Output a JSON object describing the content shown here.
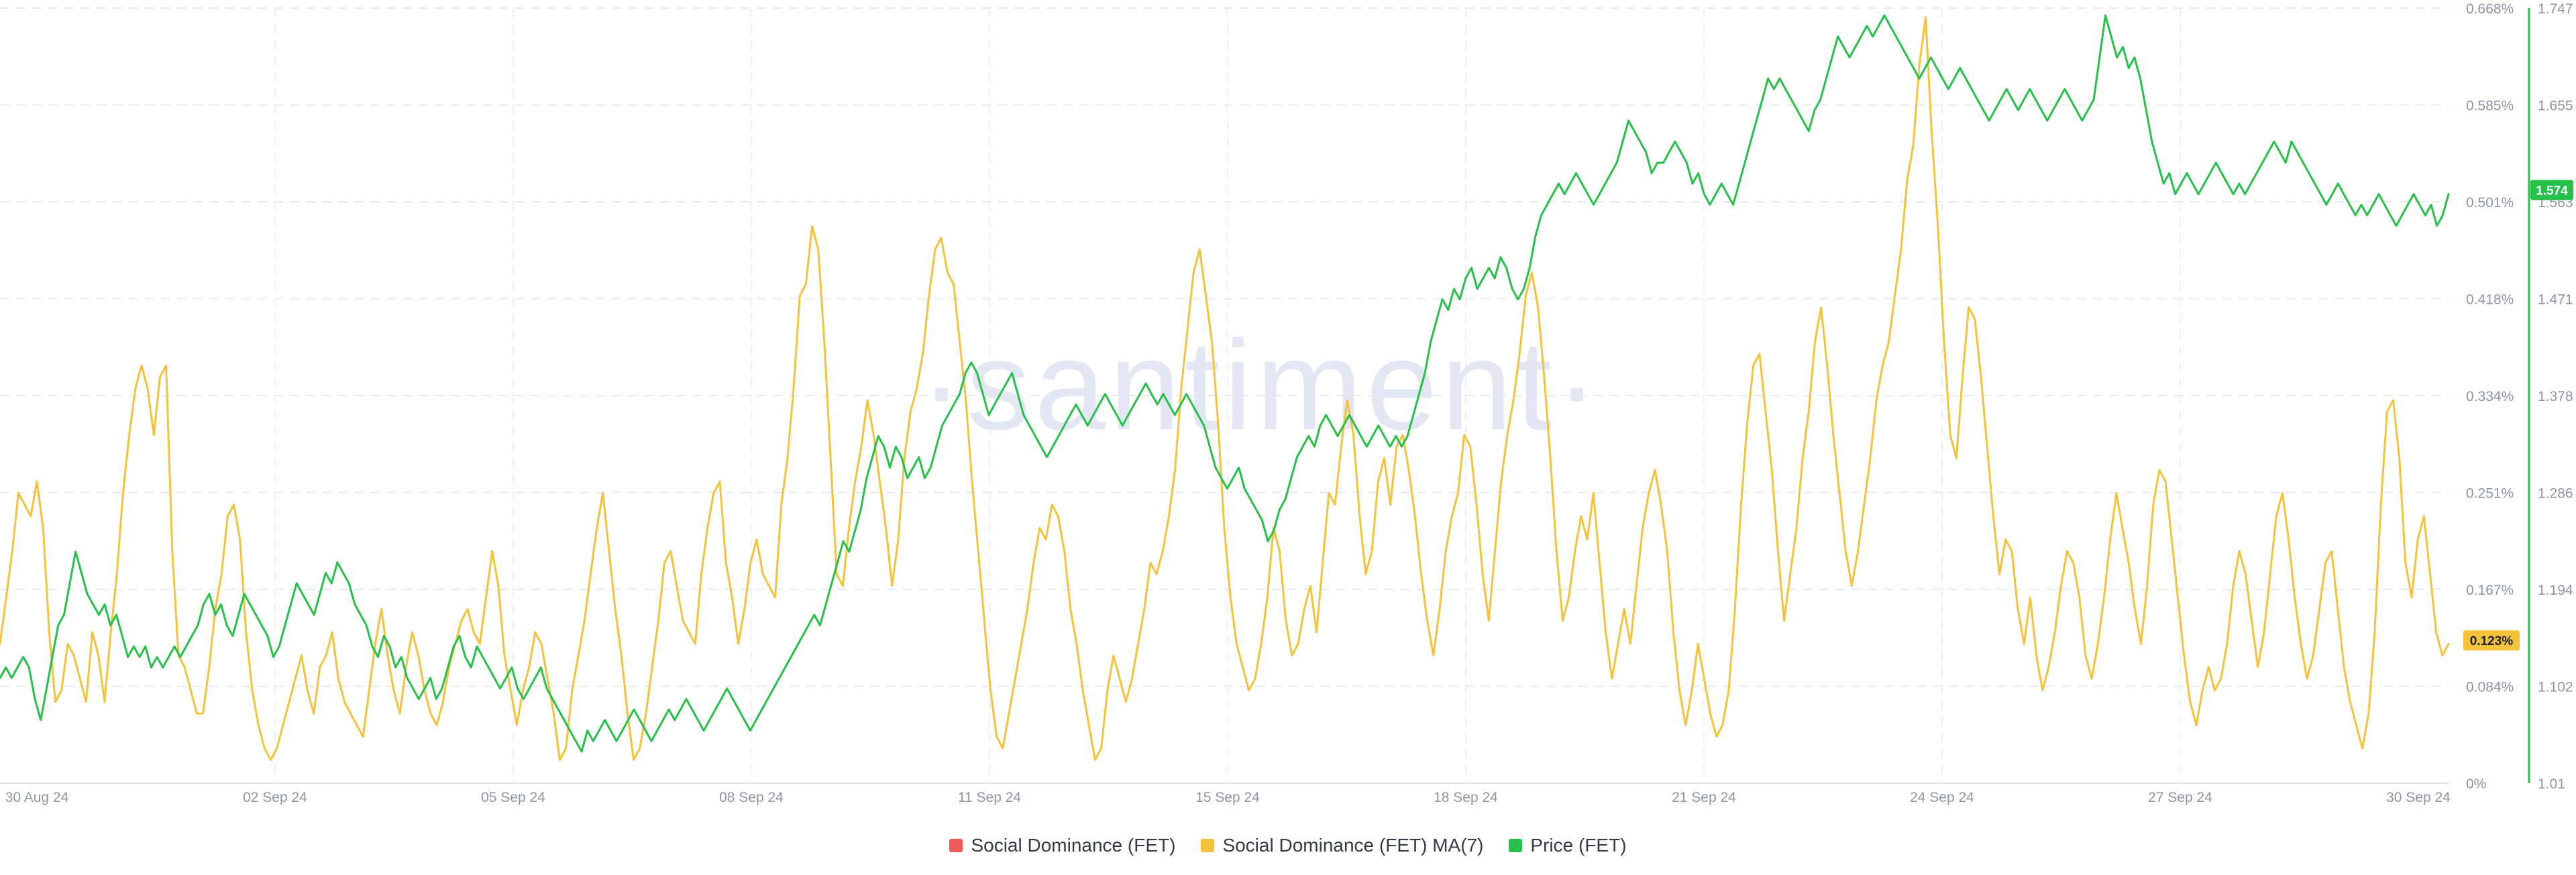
{
  "chart_data": {
    "type": "line",
    "watermark": "·santiment·",
    "x_labels": [
      "30 Aug 24",
      "02 Sep 24",
      "05 Sep 24",
      "08 Sep 24",
      "11 Sep 24",
      "15 Sep 24",
      "18 Sep 24",
      "21 Sep 24",
      "24 Sep 24",
      "27 Sep 24",
      "30 Sep 24"
    ],
    "left_axis": {
      "series": "Social Dominance (FET) MA(7)",
      "ylim": [
        0,
        0.668
      ],
      "ticks": [
        "0.668%",
        "0.585%",
        "0.501%",
        "0.418%",
        "0.334%",
        "0.251%",
        "0.167%",
        "0.084%",
        "0%"
      ]
    },
    "right_axis": {
      "series": "Price (FET)",
      "ylim": [
        1.01,
        1.747
      ],
      "ticks": [
        "1.747",
        "1.655",
        "1.563",
        "1.471",
        "1.378",
        "1.286",
        "1.194",
        "1.102",
        "1.01"
      ]
    },
    "current_value_badges": {
      "price": "1.574",
      "social_dominance_ma": "0.123%"
    },
    "grid": true,
    "legend_position": "bottom",
    "series": [
      {
        "name": "Social Dominance (FET)",
        "color": "#f05a5a",
        "axis": "left",
        "values": []
      },
      {
        "name": "Social Dominance (FET) MA(7)",
        "color": "#f5c33b",
        "axis": "left",
        "values": [
          0.12,
          0.16,
          0.2,
          0.25,
          0.24,
          0.23,
          0.26,
          0.22,
          0.13,
          0.07,
          0.08,
          0.12,
          0.11,
          0.09,
          0.07,
          0.13,
          0.11,
          0.07,
          0.13,
          0.18,
          0.25,
          0.3,
          0.34,
          0.36,
          0.34,
          0.3,
          0.35,
          0.36,
          0.2,
          0.11,
          0.1,
          0.08,
          0.06,
          0.06,
          0.1,
          0.15,
          0.18,
          0.23,
          0.24,
          0.21,
          0.13,
          0.08,
          0.05,
          0.03,
          0.02,
          0.03,
          0.05,
          0.07,
          0.09,
          0.11,
          0.08,
          0.06,
          0.1,
          0.11,
          0.13,
          0.09,
          0.07,
          0.06,
          0.05,
          0.04,
          0.08,
          0.12,
          0.15,
          0.11,
          0.08,
          0.06,
          0.1,
          0.13,
          0.11,
          0.08,
          0.06,
          0.05,
          0.07,
          0.1,
          0.12,
          0.14,
          0.15,
          0.13,
          0.12,
          0.16,
          0.2,
          0.17,
          0.11,
          0.08,
          0.05,
          0.08,
          0.1,
          0.13,
          0.12,
          0.09,
          0.06,
          0.02,
          0.03,
          0.08,
          0.11,
          0.14,
          0.18,
          0.22,
          0.25,
          0.2,
          0.15,
          0.11,
          0.06,
          0.02,
          0.03,
          0.06,
          0.1,
          0.14,
          0.19,
          0.2,
          0.17,
          0.14,
          0.13,
          0.12,
          0.18,
          0.22,
          0.25,
          0.26,
          0.19,
          0.16,
          0.12,
          0.15,
          0.19,
          0.21,
          0.18,
          0.17,
          0.16,
          0.24,
          0.28,
          0.34,
          0.42,
          0.43,
          0.48,
          0.46,
          0.38,
          0.28,
          0.18,
          0.17,
          0.22,
          0.26,
          0.29,
          0.33,
          0.3,
          0.26,
          0.22,
          0.17,
          0.21,
          0.28,
          0.32,
          0.34,
          0.37,
          0.42,
          0.46,
          0.47,
          0.44,
          0.43,
          0.38,
          0.33,
          0.26,
          0.2,
          0.14,
          0.08,
          0.04,
          0.03,
          0.06,
          0.09,
          0.12,
          0.15,
          0.19,
          0.22,
          0.21,
          0.24,
          0.23,
          0.2,
          0.15,
          0.12,
          0.08,
          0.05,
          0.02,
          0.03,
          0.08,
          0.11,
          0.09,
          0.07,
          0.09,
          0.12,
          0.15,
          0.19,
          0.18,
          0.2,
          0.23,
          0.27,
          0.34,
          0.39,
          0.44,
          0.46,
          0.42,
          0.38,
          0.31,
          0.22,
          0.16,
          0.12,
          0.1,
          0.08,
          0.09,
          0.12,
          0.16,
          0.22,
          0.2,
          0.14,
          0.11,
          0.12,
          0.15,
          0.17,
          0.13,
          0.19,
          0.25,
          0.24,
          0.29,
          0.33,
          0.3,
          0.23,
          0.18,
          0.2,
          0.26,
          0.28,
          0.24,
          0.29,
          0.3,
          0.27,
          0.23,
          0.18,
          0.14,
          0.11,
          0.15,
          0.2,
          0.23,
          0.25,
          0.3,
          0.29,
          0.24,
          0.18,
          0.14,
          0.2,
          0.26,
          0.3,
          0.33,
          0.37,
          0.42,
          0.44,
          0.41,
          0.35,
          0.28,
          0.2,
          0.14,
          0.16,
          0.2,
          0.23,
          0.21,
          0.25,
          0.19,
          0.13,
          0.09,
          0.12,
          0.15,
          0.12,
          0.17,
          0.22,
          0.25,
          0.27,
          0.24,
          0.2,
          0.13,
          0.08,
          0.05,
          0.08,
          0.12,
          0.09,
          0.06,
          0.04,
          0.05,
          0.08,
          0.15,
          0.24,
          0.31,
          0.36,
          0.37,
          0.32,
          0.27,
          0.2,
          0.14,
          0.18,
          0.22,
          0.28,
          0.32,
          0.38,
          0.41,
          0.36,
          0.3,
          0.25,
          0.2,
          0.17,
          0.2,
          0.24,
          0.28,
          0.33,
          0.36,
          0.38,
          0.42,
          0.46,
          0.52,
          0.55,
          0.62,
          0.66,
          0.56,
          0.48,
          0.38,
          0.3,
          0.28,
          0.35,
          0.41,
          0.4,
          0.35,
          0.29,
          0.23,
          0.18,
          0.21,
          0.2,
          0.15,
          0.12,
          0.16,
          0.11,
          0.08,
          0.1,
          0.13,
          0.17,
          0.2,
          0.19,
          0.16,
          0.11,
          0.09,
          0.12,
          0.16,
          0.21,
          0.25,
          0.22,
          0.19,
          0.15,
          0.12,
          0.17,
          0.24,
          0.27,
          0.26,
          0.21,
          0.16,
          0.11,
          0.07,
          0.05,
          0.08,
          0.1,
          0.08,
          0.09,
          0.12,
          0.17,
          0.2,
          0.18,
          0.14,
          0.1,
          0.13,
          0.18,
          0.23,
          0.25,
          0.21,
          0.16,
          0.12,
          0.09,
          0.11,
          0.15,
          0.19,
          0.2,
          0.15,
          0.1,
          0.07,
          0.05,
          0.03,
          0.06,
          0.13,
          0.24,
          0.32,
          0.33,
          0.28,
          0.19,
          0.16,
          0.21,
          0.23,
          0.18,
          0.13,
          0.11,
          0.12
        ]
      },
      {
        "name": "Price (FET)",
        "color": "#26c04a",
        "axis": "right",
        "values": [
          1.11,
          1.12,
          1.11,
          1.12,
          1.13,
          1.12,
          1.09,
          1.07,
          1.1,
          1.13,
          1.16,
          1.17,
          1.2,
          1.23,
          1.21,
          1.19,
          1.18,
          1.17,
          1.18,
          1.16,
          1.17,
          1.15,
          1.13,
          1.14,
          1.13,
          1.14,
          1.12,
          1.13,
          1.12,
          1.13,
          1.14,
          1.13,
          1.14,
          1.15,
          1.16,
          1.18,
          1.19,
          1.17,
          1.18,
          1.16,
          1.15,
          1.17,
          1.19,
          1.18,
          1.17,
          1.16,
          1.15,
          1.13,
          1.14,
          1.16,
          1.18,
          1.2,
          1.19,
          1.18,
          1.17,
          1.19,
          1.21,
          1.2,
          1.22,
          1.21,
          1.2,
          1.18,
          1.17,
          1.16,
          1.14,
          1.13,
          1.15,
          1.14,
          1.12,
          1.13,
          1.11,
          1.1,
          1.09,
          1.1,
          1.11,
          1.09,
          1.1,
          1.12,
          1.14,
          1.15,
          1.13,
          1.12,
          1.14,
          1.13,
          1.12,
          1.11,
          1.1,
          1.11,
          1.12,
          1.1,
          1.09,
          1.1,
          1.11,
          1.12,
          1.1,
          1.09,
          1.08,
          1.07,
          1.06,
          1.05,
          1.04,
          1.06,
          1.05,
          1.06,
          1.07,
          1.06,
          1.05,
          1.06,
          1.07,
          1.08,
          1.07,
          1.06,
          1.05,
          1.06,
          1.07,
          1.08,
          1.07,
          1.08,
          1.09,
          1.08,
          1.07,
          1.06,
          1.07,
          1.08,
          1.09,
          1.1,
          1.09,
          1.08,
          1.07,
          1.06,
          1.07,
          1.08,
          1.09,
          1.1,
          1.11,
          1.12,
          1.13,
          1.14,
          1.15,
          1.16,
          1.17,
          1.16,
          1.18,
          1.2,
          1.22,
          1.24,
          1.23,
          1.25,
          1.27,
          1.3,
          1.32,
          1.34,
          1.33,
          1.31,
          1.33,
          1.32,
          1.3,
          1.31,
          1.32,
          1.3,
          1.31,
          1.33,
          1.35,
          1.36,
          1.37,
          1.38,
          1.4,
          1.41,
          1.4,
          1.38,
          1.36,
          1.37,
          1.38,
          1.39,
          1.4,
          1.38,
          1.36,
          1.35,
          1.34,
          1.33,
          1.32,
          1.33,
          1.34,
          1.35,
          1.36,
          1.37,
          1.36,
          1.35,
          1.36,
          1.37,
          1.38,
          1.37,
          1.36,
          1.35,
          1.36,
          1.37,
          1.38,
          1.39,
          1.38,
          1.37,
          1.38,
          1.37,
          1.36,
          1.37,
          1.38,
          1.37,
          1.36,
          1.35,
          1.33,
          1.31,
          1.3,
          1.29,
          1.3,
          1.31,
          1.29,
          1.28,
          1.27,
          1.26,
          1.24,
          1.25,
          1.27,
          1.28,
          1.3,
          1.32,
          1.33,
          1.34,
          1.33,
          1.35,
          1.36,
          1.35,
          1.34,
          1.35,
          1.36,
          1.35,
          1.34,
          1.33,
          1.34,
          1.35,
          1.34,
          1.33,
          1.34,
          1.33,
          1.34,
          1.36,
          1.38,
          1.4,
          1.43,
          1.45,
          1.47,
          1.46,
          1.48,
          1.47,
          1.49,
          1.5,
          1.48,
          1.49,
          1.5,
          1.49,
          1.51,
          1.5,
          1.48,
          1.47,
          1.48,
          1.5,
          1.53,
          1.55,
          1.56,
          1.57,
          1.58,
          1.57,
          1.58,
          1.59,
          1.58,
          1.57,
          1.56,
          1.57,
          1.58,
          1.59,
          1.6,
          1.62,
          1.64,
          1.63,
          1.62,
          1.61,
          1.59,
          1.6,
          1.6,
          1.61,
          1.62,
          1.61,
          1.6,
          1.58,
          1.59,
          1.57,
          1.56,
          1.57,
          1.58,
          1.57,
          1.56,
          1.58,
          1.6,
          1.62,
          1.64,
          1.66,
          1.68,
          1.67,
          1.68,
          1.67,
          1.66,
          1.65,
          1.64,
          1.63,
          1.65,
          1.66,
          1.68,
          1.7,
          1.72,
          1.71,
          1.7,
          1.71,
          1.72,
          1.73,
          1.72,
          1.73,
          1.74,
          1.73,
          1.72,
          1.71,
          1.7,
          1.69,
          1.68,
          1.69,
          1.7,
          1.69,
          1.68,
          1.67,
          1.68,
          1.69,
          1.68,
          1.67,
          1.66,
          1.65,
          1.64,
          1.65,
          1.66,
          1.67,
          1.66,
          1.65,
          1.66,
          1.67,
          1.66,
          1.65,
          1.64,
          1.65,
          1.66,
          1.67,
          1.66,
          1.65,
          1.64,
          1.65,
          1.66,
          1.7,
          1.74,
          1.72,
          1.7,
          1.71,
          1.69,
          1.7,
          1.68,
          1.65,
          1.62,
          1.6,
          1.58,
          1.59,
          1.57,
          1.58,
          1.59,
          1.58,
          1.57,
          1.58,
          1.59,
          1.6,
          1.59,
          1.58,
          1.57,
          1.58,
          1.57,
          1.58,
          1.59,
          1.6,
          1.61,
          1.62,
          1.61,
          1.6,
          1.62,
          1.61,
          1.6,
          1.59,
          1.58,
          1.57,
          1.56,
          1.57,
          1.58,
          1.57,
          1.56,
          1.55,
          1.56,
          1.55,
          1.56,
          1.57,
          1.56,
          1.55,
          1.54,
          1.55,
          1.56,
          1.57,
          1.56,
          1.55,
          1.56,
          1.54,
          1.55,
          1.57
        ]
      }
    ]
  }
}
